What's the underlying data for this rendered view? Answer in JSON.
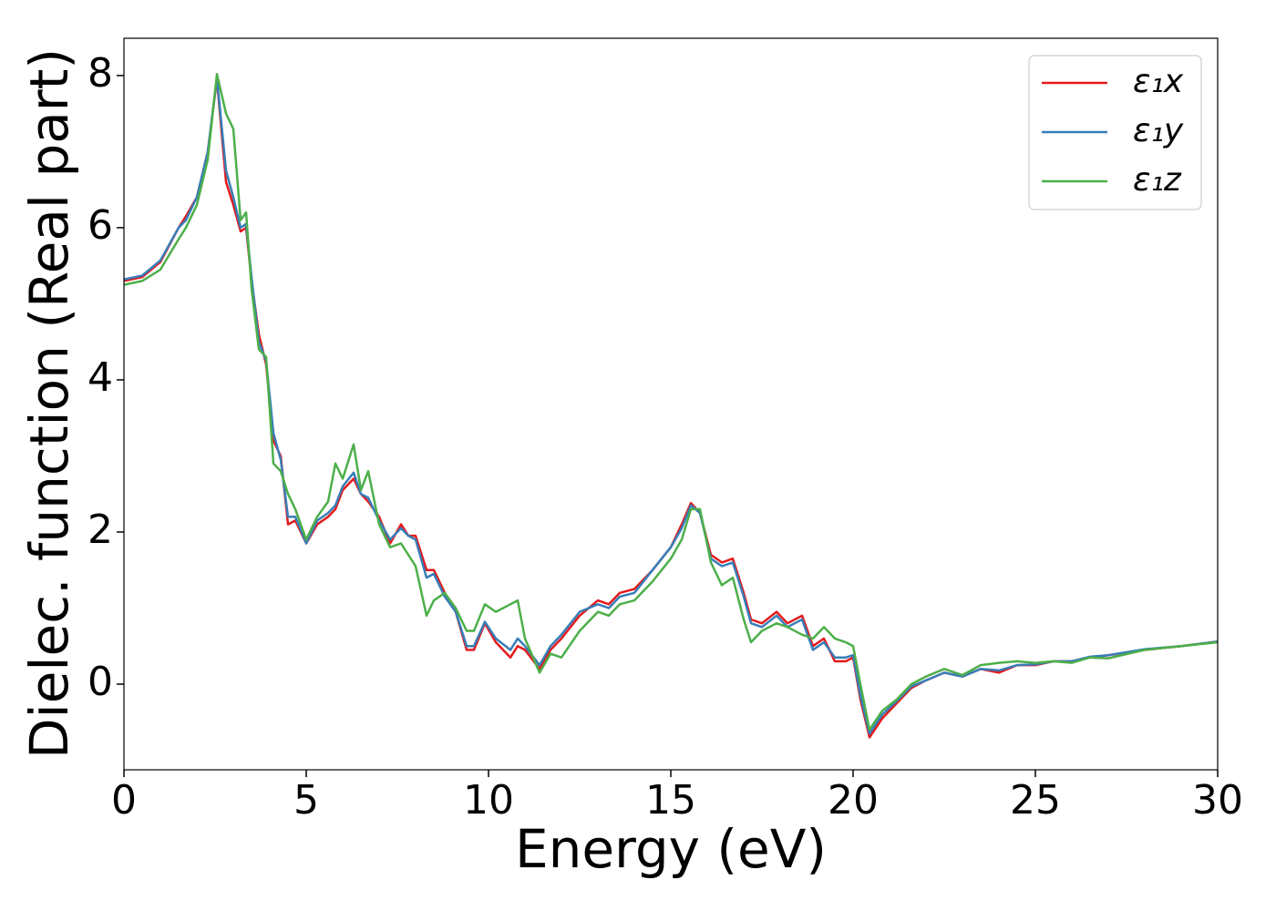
{
  "chart_data": {
    "type": "line",
    "xlabel": "Energy (eV)",
    "ylabel": "Dielec. function (Real part)",
    "xlim": [
      0,
      30
    ],
    "ylim": [
      -1.126,
      8.49
    ],
    "xticks": [
      0,
      5,
      10,
      15,
      20,
      25,
      30
    ],
    "yticks": [
      0,
      2,
      4,
      6,
      8
    ],
    "legend": "upper right",
    "x": [
      0,
      0.5,
      1,
      1.5,
      1.7,
      2.0,
      2.3,
      2.55,
      2.8,
      3.0,
      3.2,
      3.35,
      3.5,
      3.7,
      3.9,
      4.1,
      4.3,
      4.5,
      4.7,
      5.0,
      5.3,
      5.6,
      5.8,
      6.0,
      6.3,
      6.5,
      6.7,
      7.0,
      7.3,
      7.6,
      7.8,
      8.0,
      8.3,
      8.5,
      8.8,
      9.1,
      9.4,
      9.6,
      9.9,
      10.2,
      10.6,
      10.8,
      11.0,
      11.4,
      11.7,
      12.0,
      12.5,
      13.0,
      13.3,
      13.6,
      14.0,
      14.5,
      15.0,
      15.3,
      15.55,
      15.8,
      16.1,
      16.4,
      16.7,
      17.0,
      17.2,
      17.5,
      17.9,
      18.2,
      18.6,
      18.9,
      19.2,
      19.5,
      19.8,
      20.0,
      20.2,
      20.45,
      20.8,
      21.2,
      21.6,
      22.0,
      22.5,
      23.0,
      23.5,
      24.0,
      24.5,
      25.0,
      25.5,
      26.0,
      26.5,
      27,
      28,
      29,
      30
    ],
    "series": [
      {
        "name": "ε₁x",
        "color": "#e41a1c",
        "values": [
          5.3,
          5.35,
          5.55,
          6.0,
          6.15,
          6.4,
          7.0,
          7.95,
          6.6,
          6.3,
          5.95,
          6.0,
          5.3,
          4.6,
          4.2,
          3.2,
          3.0,
          2.1,
          2.15,
          1.85,
          2.1,
          2.2,
          2.3,
          2.55,
          2.7,
          2.5,
          2.4,
          2.2,
          1.85,
          2.1,
          1.95,
          1.95,
          1.5,
          1.5,
          1.2,
          0.95,
          0.45,
          0.45,
          0.8,
          0.55,
          0.35,
          0.5,
          0.45,
          0.2,
          0.45,
          0.6,
          0.9,
          1.1,
          1.05,
          1.2,
          1.25,
          1.5,
          1.8,
          2.1,
          2.38,
          2.25,
          1.7,
          1.6,
          1.65,
          1.2,
          0.85,
          0.8,
          0.95,
          0.8,
          0.9,
          0.5,
          0.6,
          0.3,
          0.3,
          0.35,
          -0.2,
          -0.7,
          -0.45,
          -0.25,
          -0.05,
          0.05,
          0.15,
          0.1,
          0.2,
          0.15,
          0.25,
          0.25,
          0.3,
          0.3,
          0.35,
          0.38,
          0.45,
          0.5,
          0.56
        ]
      },
      {
        "name": "ε₁y",
        "color": "#377eb8",
        "values": [
          5.32,
          5.37,
          5.57,
          6.0,
          6.1,
          6.4,
          7.0,
          7.97,
          6.75,
          6.4,
          6.0,
          6.05,
          5.35,
          4.5,
          4.25,
          3.3,
          2.95,
          2.2,
          2.2,
          1.85,
          2.15,
          2.25,
          2.35,
          2.6,
          2.78,
          2.5,
          2.45,
          2.15,
          1.9,
          2.05,
          1.95,
          1.9,
          1.4,
          1.45,
          1.15,
          0.95,
          0.5,
          0.5,
          0.82,
          0.6,
          0.45,
          0.6,
          0.5,
          0.25,
          0.5,
          0.65,
          0.95,
          1.05,
          1.0,
          1.15,
          1.2,
          1.5,
          1.8,
          2.05,
          2.35,
          2.25,
          1.65,
          1.55,
          1.6,
          1.15,
          0.8,
          0.75,
          0.9,
          0.75,
          0.85,
          0.45,
          0.55,
          0.35,
          0.35,
          0.38,
          -0.15,
          -0.65,
          -0.4,
          -0.22,
          -0.03,
          0.05,
          0.15,
          0.1,
          0.2,
          0.18,
          0.25,
          0.26,
          0.3,
          0.3,
          0.36,
          0.38,
          0.46,
          0.5,
          0.56
        ]
      },
      {
        "name": "ε₁z",
        "color": "#4daf4a",
        "values": [
          5.25,
          5.3,
          5.45,
          5.85,
          6.0,
          6.3,
          6.9,
          8.02,
          7.5,
          7.3,
          6.1,
          6.2,
          5.2,
          4.4,
          4.3,
          2.9,
          2.8,
          2.5,
          2.3,
          1.9,
          2.2,
          2.4,
          2.9,
          2.7,
          3.15,
          2.55,
          2.8,
          2.1,
          1.8,
          1.85,
          1.7,
          1.55,
          0.9,
          1.1,
          1.2,
          1.0,
          0.7,
          0.7,
          1.05,
          0.95,
          1.05,
          1.1,
          0.6,
          0.15,
          0.4,
          0.35,
          0.7,
          0.95,
          0.9,
          1.05,
          1.1,
          1.35,
          1.65,
          1.9,
          2.3,
          2.3,
          1.6,
          1.3,
          1.4,
          0.85,
          0.55,
          0.7,
          0.8,
          0.75,
          0.65,
          0.6,
          0.75,
          0.6,
          0.55,
          0.5,
          0.0,
          -0.6,
          -0.35,
          -0.2,
          0.0,
          0.1,
          0.2,
          0.12,
          0.25,
          0.28,
          0.3,
          0.28,
          0.3,
          0.28,
          0.35,
          0.34,
          0.45,
          0.5,
          0.55
        ]
      }
    ]
  }
}
